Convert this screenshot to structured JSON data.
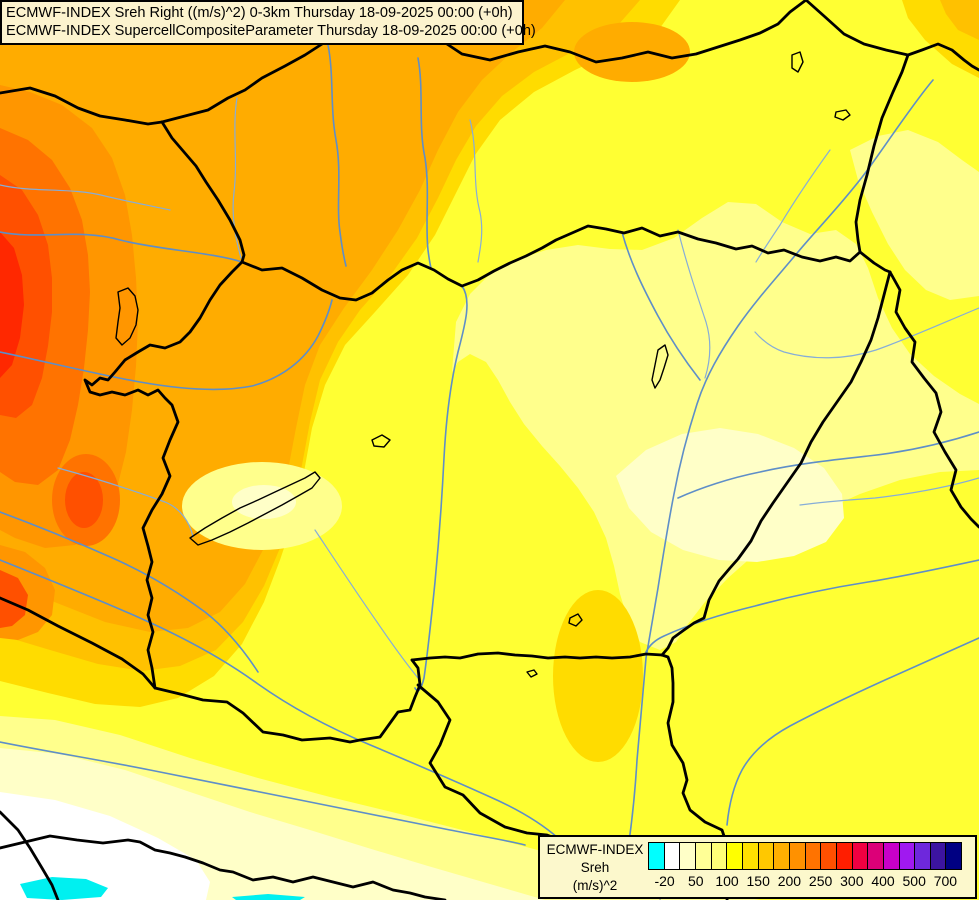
{
  "header": {
    "line1": "ECMWF-INDEX Sreh Right ((m/s)^2) 0-3km Thursday 18-09-2025 00:00 (+0h)",
    "line2": "ECMWF-INDEX SupercellCompositeParameter Thursday 18-09-2025 00:00 (+0h)"
  },
  "legend": {
    "title": "ECMWF-INDEX",
    "parameter": "Sreh",
    "units": "(m/s)^2",
    "tick_labels": [
      "-20",
      "50",
      "100",
      "150",
      "200",
      "250",
      "300",
      "400",
      "500",
      "700"
    ],
    "colors": [
      "#00FFFF",
      "#FFFFFF",
      "#FFFFC8",
      "#FFFF96",
      "#FFFF78",
      "#FFFF00",
      "#FFE100",
      "#FFC800",
      "#FFAF00",
      "#FF9100",
      "#FF7300",
      "#FF5000",
      "#FF1E00",
      "#F00041",
      "#DC0078",
      "#C800C8",
      "#A019F0",
      "#6E28DC",
      "#3C14A0",
      "#000082"
    ]
  },
  "map": {
    "description": "Filled contour map of 0-3km storm-relative helicity (Sreh) over Hungary and neighbouring countries",
    "border_color": "#000000",
    "river_color": "#5E8EC8",
    "river_color_light": "#86ADD8",
    "river_color_gray": "#999999",
    "fill_levels": {
      "cyan": "#00F0F0",
      "white": "#FFFFFF",
      "cream": "#FFFFC8",
      "pale_yellow": "#FFFF8C",
      "yellow": "#FFFF33",
      "gold": "#FFDC00",
      "amber": "#FFC100",
      "orange": "#FFAC00",
      "deep_orange": "#FF9600",
      "red_orange": "#FF7300",
      "red": "#FF5000",
      "deep_red": "#FF2800"
    }
  }
}
